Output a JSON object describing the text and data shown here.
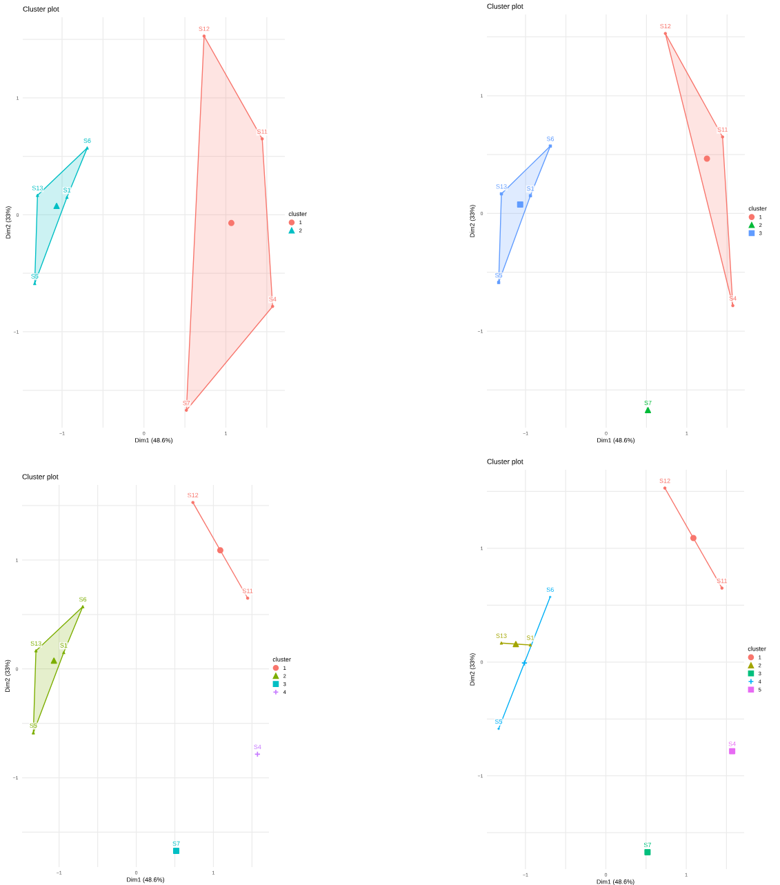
{
  "chart_data": [
    {
      "type": "scatter",
      "title": "Cluster plot",
      "xlabel": "Dim1 (48.6%)",
      "ylabel": "Dim2 (33%)",
      "legend_title": "cluster",
      "legend": "right",
      "grid": true,
      "xlim": [
        -1.48,
        1.72
      ],
      "ylim": [
        -1.82,
        1.69
      ],
      "xticks": [
        {
          "value": -1,
          "label": "−1"
        },
        {
          "value": -0.5,
          "label": null
        },
        0,
        {
          "value": 0.5,
          "label": null
        },
        1,
        {
          "value": 1.5,
          "label": null
        }
      ],
      "yticks": [
        {
          "value": -1.5,
          "label": null
        },
        {
          "value": -1,
          "label": "−1"
        },
        {
          "value": -0.5,
          "label": null
        },
        0,
        {
          "value": 0.5,
          "label": null
        },
        1,
        {
          "value": 1.5,
          "label": null
        }
      ],
      "series": [
        {
          "type": "area",
          "color": "#f8766d",
          "x": [
            0.734,
            1.444,
            1.571,
            0.518,
            0.734
          ],
          "values": [
            1.529,
            0.65,
            -0.783,
            -1.671,
            1.529
          ]
        },
        {
          "type": "area",
          "color": "#00bfc4",
          "x": [
            -0.693,
            -1.3,
            -1.334,
            -0.94,
            -0.693
          ],
          "values": [
            0.572,
            0.167,
            -0.587,
            0.15,
            0.572
          ]
        },
        {
          "name": "1",
          "color": "#f8766d",
          "marker": "circle",
          "x": [
            0.734,
            1.444,
            1.571,
            0.518
          ],
          "values": [
            1.529,
            0.65,
            -0.783,
            -1.671
          ]
        },
        {
          "name": "2",
          "color": "#00bfc4",
          "marker": "triangle",
          "x": [
            -0.693,
            -1.3,
            -0.94,
            -1.334
          ],
          "values": [
            0.572,
            0.167,
            0.15,
            -0.587
          ]
        },
        {
          "color": "#f8766d",
          "marker": "circle",
          "x": [
            1.067
          ],
          "values": [
            -0.07
          ]
        },
        {
          "color": "#00bfc4",
          "marker": "triangle",
          "x": [
            -1.067
          ],
          "values": [
            0.076
          ]
        }
      ],
      "annotations": [
        {
          "text": "S12",
          "x": 0.734,
          "y": 1.529
        },
        {
          "text": "S11",
          "x": 1.444,
          "y": 0.65
        },
        {
          "text": "S4",
          "x": 1.571,
          "y": -0.783
        },
        {
          "text": "S7",
          "x": 0.518,
          "y": -1.671
        },
        {
          "text": "S6",
          "x": -0.693,
          "y": 0.572
        },
        {
          "text": "S13",
          "x": -1.3,
          "y": 0.167
        },
        {
          "text": "S1",
          "x": -0.94,
          "y": 0.15
        },
        {
          "text": "S5",
          "x": -1.334,
          "y": -0.587
        }
      ]
    },
    {
      "type": "scatter",
      "title": "Cluster plot",
      "xlabel": "Dim1 (48.6%)",
      "ylabel": "Dim2 (33%)",
      "legend_title": "cluster",
      "legend": "right",
      "grid": true,
      "xlim": [
        -1.48,
        1.72
      ],
      "ylim": [
        -1.82,
        1.69
      ],
      "xticks": [
        {
          "value": -1,
          "label": "−1"
        },
        {
          "value": -0.5,
          "label": null
        },
        0,
        {
          "value": 0.5,
          "label": null
        },
        1,
        {
          "value": 1.5,
          "label": null
        }
      ],
      "yticks": [
        {
          "value": -1.5,
          "label": null
        },
        {
          "value": -1,
          "label": "−1"
        },
        {
          "value": -0.5,
          "label": null
        },
        0,
        {
          "value": 0.5,
          "label": null
        },
        1,
        {
          "value": 1.5,
          "label": null
        }
      ],
      "series": [
        {
          "type": "area",
          "color": "#f8766d",
          "x": [
            0.734,
            1.444,
            1.571,
            0.734
          ],
          "values": [
            1.529,
            0.65,
            -0.783,
            1.529
          ]
        },
        {
          "type": "area",
          "color": "#619cff",
          "x": [
            -0.693,
            -1.3,
            -1.334,
            -0.94,
            -0.693
          ],
          "values": [
            0.572,
            0.167,
            -0.587,
            0.15,
            0.572
          ]
        },
        {
          "name": "1",
          "color": "#f8766d",
          "marker": "circle",
          "x": [
            0.734,
            1.444,
            1.571
          ],
          "values": [
            1.529,
            0.65,
            -0.783
          ]
        },
        {
          "name": "2",
          "color": "#00ba38",
          "marker": "triangle",
          "x": [
            0.518
          ],
          "values": [
            -1.671
          ]
        },
        {
          "name": "3",
          "color": "#619cff",
          "marker": "square",
          "x": [
            -0.693,
            -1.3,
            -0.94,
            -1.334
          ],
          "values": [
            0.572,
            0.167,
            0.15,
            -0.587
          ]
        },
        {
          "color": "#f8766d",
          "marker": "circle",
          "x": [
            1.25
          ],
          "values": [
            0.465
          ]
        },
        {
          "color": "#619cff",
          "marker": "square",
          "x": [
            -1.067
          ],
          "values": [
            0.076
          ]
        }
      ],
      "annotations": [
        {
          "text": "S12",
          "x": 0.734,
          "y": 1.529
        },
        {
          "text": "S11",
          "x": 1.444,
          "y": 0.65
        },
        {
          "text": "S4",
          "x": 1.571,
          "y": -0.783
        },
        {
          "text": "S7",
          "x": 0.518,
          "y": -1.671
        },
        {
          "text": "S6",
          "x": -0.693,
          "y": 0.572
        },
        {
          "text": "S13",
          "x": -1.3,
          "y": 0.167
        },
        {
          "text": "S1",
          "x": -0.94,
          "y": 0.15
        },
        {
          "text": "S5",
          "x": -1.334,
          "y": -0.587
        }
      ]
    },
    {
      "type": "scatter",
      "title": "Cluster plot",
      "xlabel": "Dim1 (48.6%)",
      "ylabel": "Dim2 (33%)",
      "legend_title": "cluster",
      "legend": "right",
      "grid": true,
      "xlim": [
        -1.48,
        1.72
      ],
      "ylim": [
        -1.82,
        1.69
      ],
      "xticks": [
        {
          "value": -1,
          "label": "−1"
        },
        {
          "value": -0.5,
          "label": null
        },
        0,
        {
          "value": 0.5,
          "label": null
        },
        1,
        {
          "value": 1.5,
          "label": null
        }
      ],
      "yticks": [
        {
          "value": -1.5,
          "label": null
        },
        {
          "value": -1,
          "label": "−1"
        },
        {
          "value": -0.5,
          "label": null
        },
        0,
        {
          "value": 0.5,
          "label": null
        },
        1,
        {
          "value": 1.5,
          "label": null
        }
      ],
      "series": [
        {
          "type": "line",
          "color": "#f8766d",
          "x": [
            0.734,
            1.444
          ],
          "values": [
            1.529,
            0.65
          ]
        },
        {
          "type": "area",
          "color": "#7cae00",
          "x": [
            -0.693,
            -1.3,
            -1.334,
            -0.94,
            -0.693
          ],
          "values": [
            0.572,
            0.167,
            -0.587,
            0.15,
            0.572
          ]
        },
        {
          "name": "1",
          "color": "#f8766d",
          "marker": "circle",
          "x": [
            0.734,
            1.444
          ],
          "values": [
            1.529,
            0.65
          ]
        },
        {
          "name": "2",
          "color": "#7cae00",
          "marker": "triangle",
          "x": [
            -0.693,
            -1.3,
            -0.94,
            -1.334
          ],
          "values": [
            0.572,
            0.167,
            0.15,
            -0.587
          ]
        },
        {
          "name": "3",
          "color": "#00bfc4",
          "marker": "square",
          "x": [
            0.518
          ],
          "values": [
            -1.671
          ]
        },
        {
          "name": "4",
          "color": "#c77cff",
          "marker": "cross",
          "x": [
            1.571
          ],
          "values": [
            -0.783
          ]
        },
        {
          "color": "#f8766d",
          "marker": "circle",
          "x": [
            1.089
          ],
          "values": [
            1.09
          ]
        },
        {
          "color": "#7cae00",
          "marker": "triangle",
          "x": [
            -1.067
          ],
          "values": [
            0.076
          ]
        }
      ],
      "annotations": [
        {
          "text": "S12",
          "x": 0.734,
          "y": 1.529
        },
        {
          "text": "S11",
          "x": 1.444,
          "y": 0.65
        },
        {
          "text": "S4",
          "x": 1.571,
          "y": -0.783
        },
        {
          "text": "S7",
          "x": 0.518,
          "y": -1.671
        },
        {
          "text": "S6",
          "x": -0.693,
          "y": 0.572
        },
        {
          "text": "S13",
          "x": -1.3,
          "y": 0.167
        },
        {
          "text": "S1",
          "x": -0.94,
          "y": 0.15
        },
        {
          "text": "S5",
          "x": -1.334,
          "y": -0.587
        }
      ]
    },
    {
      "type": "scatter",
      "title": "Cluster plot",
      "xlabel": "Dim1 (48.6%)",
      "ylabel": "Dim2 (33%)",
      "legend_title": "cluster",
      "legend": "right",
      "grid": true,
      "xlim": [
        -1.48,
        1.72
      ],
      "ylim": [
        -1.82,
        1.69
      ],
      "xticks": [
        {
          "value": -1,
          "label": "−1"
        },
        {
          "value": -0.5,
          "label": null
        },
        0,
        {
          "value": 0.5,
          "label": null
        },
        1,
        {
          "value": 1.5,
          "label": null
        }
      ],
      "yticks": [
        {
          "value": -1.5,
          "label": null
        },
        {
          "value": -1,
          "label": "−1"
        },
        {
          "value": -0.5,
          "label": null
        },
        0,
        {
          "value": 0.5,
          "label": null
        },
        1,
        {
          "value": 1.5,
          "label": null
        }
      ],
      "series": [
        {
          "type": "line",
          "color": "#f8766d",
          "x": [
            0.734,
            1.444
          ],
          "values": [
            1.529,
            0.65
          ]
        },
        {
          "type": "line",
          "color": "#a3a500",
          "x": [
            -1.3,
            -0.94
          ],
          "values": [
            0.167,
            0.15
          ]
        },
        {
          "type": "line",
          "color": "#00b0f6",
          "x": [
            -0.693,
            -1.334
          ],
          "values": [
            0.572,
            -0.587
          ]
        },
        {
          "name": "1",
          "color": "#f8766d",
          "marker": "circle",
          "x": [
            0.734,
            1.444
          ],
          "values": [
            1.529,
            0.65
          ]
        },
        {
          "name": "2",
          "color": "#a3a500",
          "marker": "triangle",
          "x": [
            -1.3,
            -0.94
          ],
          "values": [
            0.167,
            0.15
          ]
        },
        {
          "name": "3",
          "color": "#00bf7d",
          "marker": "square",
          "x": [
            0.518
          ],
          "values": [
            -1.671
          ]
        },
        {
          "name": "4",
          "color": "#00b0f6",
          "marker": "cross",
          "x": [
            -0.693,
            -1.334
          ],
          "values": [
            0.572,
            -0.587
          ]
        },
        {
          "name": "5",
          "color": "#e76bf3",
          "marker": "square",
          "x": [
            1.571
          ],
          "values": [
            -0.783
          ]
        },
        {
          "color": "#f8766d",
          "marker": "circle",
          "x": [
            1.089
          ],
          "values": [
            1.09
          ]
        },
        {
          "color": "#a3a500",
          "marker": "triangle",
          "x": [
            -1.12
          ],
          "values": [
            0.158
          ]
        },
        {
          "color": "#00b0f6",
          "marker": "cross",
          "x": [
            -1.013
          ],
          "values": [
            -0.008
          ]
        }
      ],
      "annotations": [
        {
          "text": "S12",
          "x": 0.734,
          "y": 1.529
        },
        {
          "text": "S11",
          "x": 1.444,
          "y": 0.65
        },
        {
          "text": "S4",
          "x": 1.571,
          "y": -0.783
        },
        {
          "text": "S7",
          "x": 0.518,
          "y": -1.671
        },
        {
          "text": "S6",
          "x": -0.693,
          "y": 0.572
        },
        {
          "text": "S13",
          "x": -1.3,
          "y": 0.167
        },
        {
          "text": "S1",
          "x": -0.94,
          "y": 0.15
        },
        {
          "text": "S5",
          "x": -1.334,
          "y": -0.587
        }
      ]
    }
  ]
}
